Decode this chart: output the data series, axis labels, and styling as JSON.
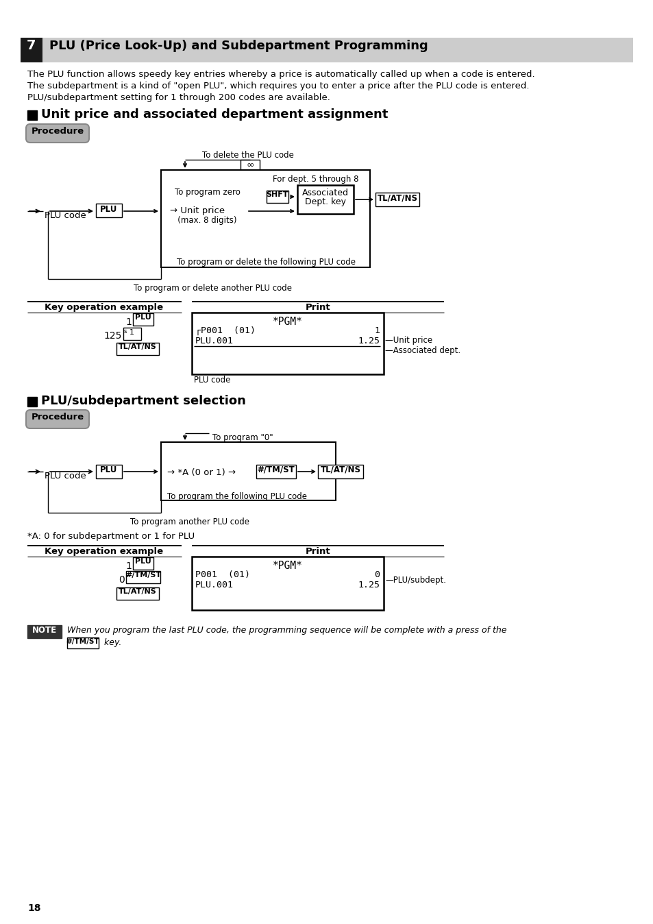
{
  "bg_color": "#ffffff",
  "page_num": "18",
  "section_num": "7",
  "section_title": "PLU (Price Look-Up) and Subdepartment Programming",
  "intro": [
    "The PLU function allows speedy key entries whereby a price is automatically called up when a code is entered.",
    "The subdepartment is a kind of \"open PLU\", which requires you to enter a price after the PLU code is entered.",
    "PLU/subdepartment setting for 1 through 200 codes are available."
  ],
  "sec2_title": "Unit price and associated department assignment",
  "sec3_title": "PLU/subdepartment selection",
  "procedure": "Procedure",
  "key_op": "Key operation example",
  "print_lbl": "Print",
  "note_lbl": "NOTE",
  "note_line1": "When you program the last PLU code, the programming sequence will be complete with a press of the",
  "note_key": "#/TM/ST",
  "note_line2": "key."
}
